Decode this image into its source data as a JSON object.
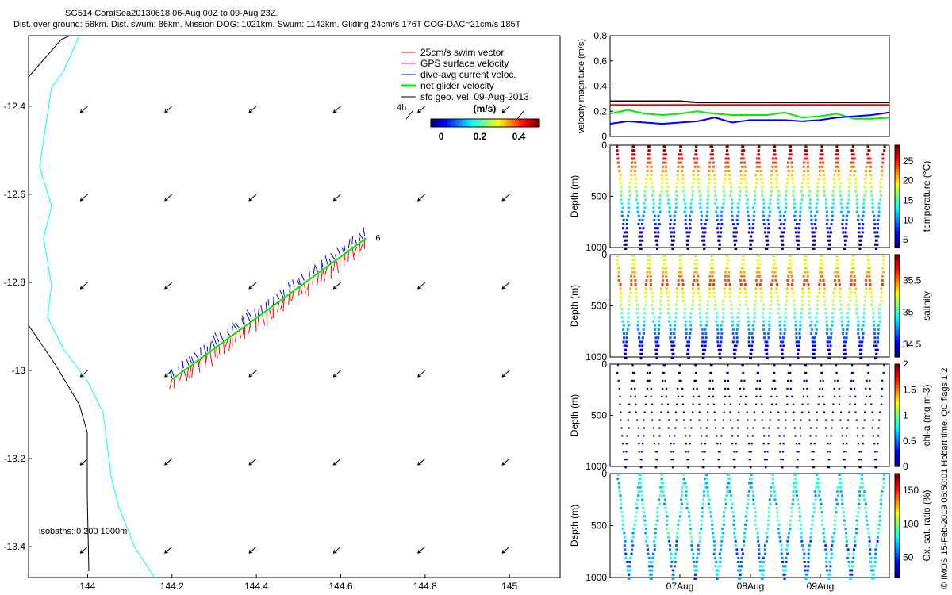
{
  "header": {
    "line1": "SG514 CoralSea20130618 06-Aug 00Z to 09-Aug 23Z.",
    "line2": "Dist. over ground: 58km. Dist. swum: 86km. Mission DOG: 1021km. Swum: 1142km. Gliding 24cm/s 176T COG-DAC=21cm/s 185T"
  },
  "footer_note": "© IMOS 15-Feb-2019 06:50:01 Hobart time. QC flags 1  2",
  "colors": {
    "swim": "#ff0000",
    "gps": "#ff00ff",
    "dac": "#0000ff",
    "net": "#00ee00",
    "geo": "#000000",
    "isobath0": "#000000",
    "isobath200": "#00ffff"
  },
  "chart_data": [
    {
      "type": "map",
      "xlim": [
        143.86,
        145.12
      ],
      "ylim": [
        -13.47,
        -12.24
      ],
      "x_ticks": [
        "144",
        "144.2",
        "144.4",
        "144.6",
        "144.8",
        "145"
      ],
      "y_ticks": [
        "-12.4",
        "-12.6",
        "-12.8",
        "-13",
        "-13.2",
        "-13.4"
      ],
      "x_tick_values": [
        144,
        144.2,
        144.4,
        144.6,
        144.8,
        145
      ],
      "y_tick_values": [
        -12.4,
        -12.6,
        -12.8,
        -13,
        -13.2,
        -13.4
      ],
      "legend": [
        "25cm/s swim vector",
        "GPS surface velocity",
        "dive-avg current veloc.",
        "net glider velocity",
        "sfc geo. vel. 09-Aug-2013"
      ],
      "legend_extra": "4h",
      "colorbar_label": "(m/s)",
      "colorbar_ticks": [
        "0",
        "0.2",
        "0.4"
      ],
      "isobath_label": "isobaths: 0   200  1000m",
      "track_end_label": "6",
      "track": {
        "lon": [
          144.2,
          144.66
        ],
        "lat": [
          -13.02,
          -12.7
        ]
      },
      "geo_vectors": {
        "lon": [
          144,
          144.2,
          144.4,
          144.6,
          144.8,
          145
        ],
        "lat": [
          -12.4,
          -12.6,
          -12.8,
          -13,
          -13.2,
          -13.4
        ],
        "u": -0.25,
        "v": -0.3
      }
    },
    {
      "type": "line",
      "ylabel": "velocity magnitude (m/s)",
      "ylim": [
        0,
        0.8
      ],
      "y_ticks": [
        "0",
        "0.2",
        "0.4",
        "0.6",
        "0.8"
      ],
      "y_tick_values": [
        0,
        0.2,
        0.4,
        0.6,
        0.8
      ],
      "series": [
        {
          "color": "#000000",
          "values": [
            0.28,
            0.28,
            0.28,
            0.28,
            0.28,
            0.27,
            0.27,
            0.27,
            0.27,
            0.27,
            0.27,
            0.27,
            0.27,
            0.27,
            0.27,
            0.27,
            0.27
          ]
        },
        {
          "color": "#ff0000",
          "values": [
            0.25,
            0.25,
            0.25,
            0.25,
            0.25,
            0.25,
            0.25,
            0.25,
            0.25,
            0.25,
            0.25,
            0.25,
            0.25,
            0.25,
            0.25,
            0.25,
            0.25
          ]
        },
        {
          "color": "#00ee00",
          "values": [
            0.18,
            0.21,
            0.18,
            0.17,
            0.18,
            0.2,
            0.18,
            0.17,
            0.17,
            0.17,
            0.19,
            0.15,
            0.16,
            0.18,
            0.14,
            0.14,
            0.15
          ]
        },
        {
          "color": "#0000ff",
          "values": [
            0.1,
            0.12,
            0.11,
            0.1,
            0.11,
            0.12,
            0.15,
            0.11,
            0.13,
            0.13,
            0.13,
            0.12,
            0.13,
            0.15,
            0.16,
            0.17,
            0.19
          ]
        }
      ]
    },
    {
      "type": "scatter",
      "ylabel": "Depth (m)",
      "colorbar_label": "temperature (°C)",
      "y_ticks": [
        "0",
        "500",
        "1000"
      ],
      "colorbar_ticks": [
        "5",
        "10",
        "15",
        "20",
        "25"
      ],
      "colorbar_tick_values": [
        5,
        10,
        15,
        20,
        25
      ],
      "clim": [
        3,
        29
      ],
      "ylim": [
        1000,
        0
      ],
      "dive_count": 17
    },
    {
      "type": "scatter",
      "ylabel": "Depth (m)",
      "colorbar_label": "salinity",
      "y_ticks": [
        "0",
        "500",
        "1000"
      ],
      "colorbar_ticks": [
        "34.5",
        "35",
        "35.5"
      ],
      "colorbar_tick_values": [
        34.5,
        35,
        35.5
      ],
      "clim": [
        34.3,
        35.9
      ],
      "ylim": [
        1000,
        0
      ],
      "dive_count": 17
    },
    {
      "type": "scatter",
      "ylabel": "Depth (m)",
      "colorbar_label": "chl-a (mg m-3)",
      "y_ticks": [
        "0",
        "500",
        "1000"
      ],
      "colorbar_ticks": [
        "0",
        "0.5",
        "1",
        "1.5",
        "2"
      ],
      "colorbar_tick_values": [
        0,
        0.5,
        1,
        1.5,
        2
      ],
      "clim": [
        0,
        2
      ],
      "ylim": [
        1000,
        0
      ],
      "dive_count": 17
    },
    {
      "type": "scatter",
      "ylabel": "Depth (m)",
      "colorbar_label": "Ox. sat. ratio (%)",
      "y_ticks": [
        "0",
        "500",
        "1000"
      ],
      "colorbar_ticks": [
        "50",
        "100",
        "150"
      ],
      "colorbar_tick_values": [
        50,
        100,
        150
      ],
      "clim": [
        20,
        175
      ],
      "ylim": [
        1000,
        0
      ],
      "x_ticks": [
        "07Aug",
        "08Aug",
        "09Aug"
      ],
      "dive_count": 12
    }
  ]
}
